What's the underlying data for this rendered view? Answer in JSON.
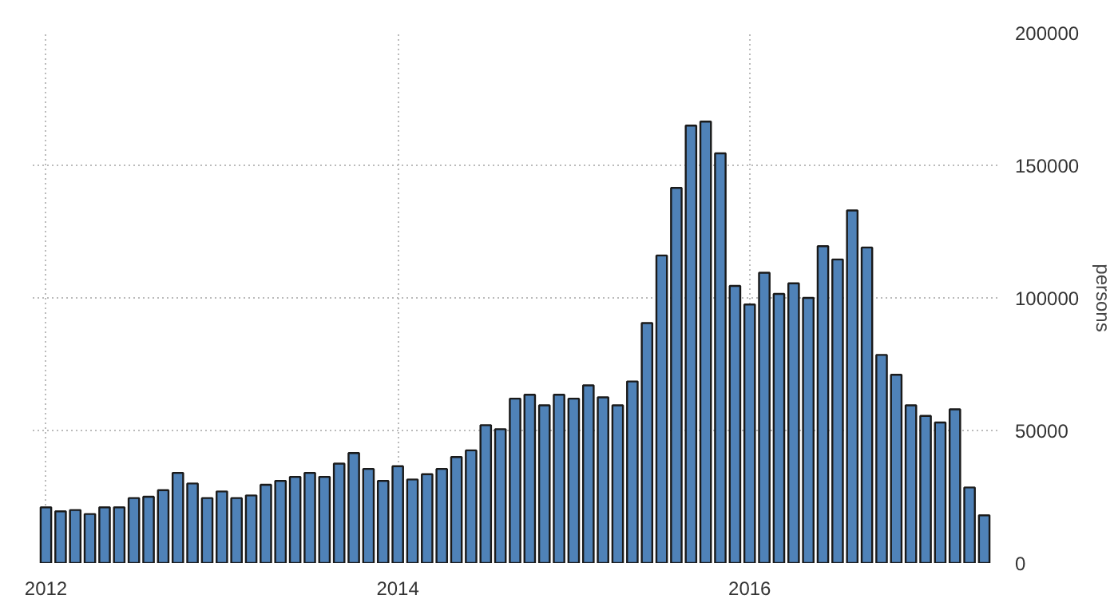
{
  "chart_data": {
    "type": "bar",
    "ylabel": "persons",
    "categories": [
      "2012",
      null,
      null,
      null,
      null,
      null,
      null,
      null,
      null,
      null,
      null,
      null,
      null,
      null,
      null,
      null,
      null,
      null,
      null,
      null,
      null,
      null,
      null,
      null,
      "2014",
      null,
      null,
      null,
      null,
      null,
      null,
      null,
      null,
      null,
      null,
      null,
      null,
      null,
      null,
      null,
      null,
      null,
      null,
      null,
      null,
      null,
      null,
      null,
      "2016",
      null,
      null,
      null,
      null,
      null,
      null,
      null,
      null,
      null,
      null,
      null,
      null,
      null,
      null,
      null,
      null
    ],
    "values": [
      21000,
      19500,
      20000,
      18500,
      21000,
      21000,
      24500,
      25000,
      27500,
      34000,
      30000,
      24500,
      27000,
      24500,
      25500,
      29500,
      31000,
      32500,
      34000,
      32500,
      37500,
      41500,
      35500,
      31000,
      36500,
      31500,
      33500,
      35500,
      40000,
      42500,
      52000,
      50500,
      62000,
      63500,
      59500,
      63500,
      62000,
      67000,
      62500,
      59500,
      68500,
      90500,
      116000,
      141500,
      165000,
      166500,
      154500,
      104500,
      97500,
      109500,
      101500,
      105500,
      100000,
      119500,
      114500,
      133000,
      119000,
      78500,
      71000,
      59500,
      55500,
      53000,
      58000,
      28500,
      18000
    ],
    "color": "#4f82b8",
    "ylim": [
      0,
      200000
    ],
    "yticks": [
      0,
      50000,
      100000,
      150000,
      200000
    ],
    "grid": true
  }
}
